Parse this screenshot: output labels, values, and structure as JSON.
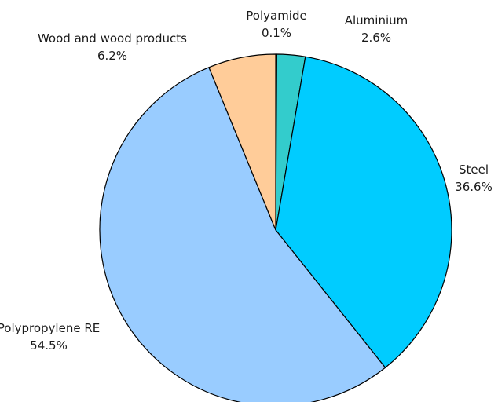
{
  "chart_data": {
    "type": "pie",
    "start_angle_deg": 90,
    "direction": "clockwise",
    "slices": [
      {
        "name": "Polyamide",
        "value": 0.1,
        "label": "0.1%",
        "color": "#1f7a7a"
      },
      {
        "name": "Aluminium",
        "value": 2.6,
        "label": "2.6%",
        "color": "#33cccc"
      },
      {
        "name": "Steel",
        "value": 36.6,
        "label": "36.6%",
        "color": "#00ccff"
      },
      {
        "name": "Polypropylene RE",
        "value": 54.5,
        "label": "54.5%",
        "color": "#99ccff"
      },
      {
        "name": "Wood and wood products",
        "value": 6.2,
        "label": "6.2%",
        "color": "#ffcc99"
      }
    ]
  }
}
